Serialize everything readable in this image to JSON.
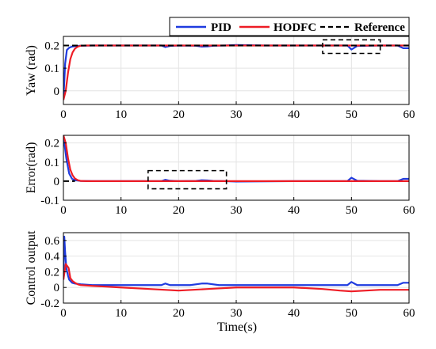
{
  "legend": {
    "items": [
      {
        "label": "PID",
        "color": "#1f3bdf",
        "style": "solid"
      },
      {
        "label": "HODFC",
        "color": "#ee1c25",
        "style": "solid"
      },
      {
        "label": "Reference",
        "color": "#000000",
        "style": "dashed"
      }
    ]
  },
  "xlabel": "Time(s)",
  "chart_data": [
    {
      "type": "line",
      "ylabel": "Yaw (rad)",
      "xlim": [
        0,
        60
      ],
      "ylim": [
        -0.06,
        0.24
      ],
      "xticks": [
        0,
        10,
        20,
        30,
        40,
        50,
        60
      ],
      "xtick_labels": [
        "0",
        "10",
        "20",
        "30",
        "40",
        "50",
        "60"
      ],
      "yticks": [
        0,
        0.1,
        0.2
      ],
      "ytick_labels": [
        "0",
        "0.1",
        "0.2"
      ],
      "grid": true,
      "zoom_box": {
        "x": [
          45,
          55
        ],
        "y": [
          0.165,
          0.225
        ]
      },
      "series": [
        {
          "name": "PID",
          "color": "#1f3bdf",
          "x": [
            0,
            0.3,
            0.6,
            1.0,
            1.5,
            2.0,
            3.0,
            5,
            10,
            15,
            17,
            17.7,
            18.5,
            20,
            23,
            24,
            25,
            26,
            28,
            30,
            35,
            40,
            45,
            48,
            49.3,
            50,
            51,
            55,
            58,
            59,
            60
          ],
          "y": [
            -0.04,
            0.12,
            0.18,
            0.19,
            0.195,
            0.197,
            0.199,
            0.2,
            0.2,
            0.2,
            0.2,
            0.193,
            0.198,
            0.2,
            0.199,
            0.195,
            0.196,
            0.199,
            0.2,
            0.202,
            0.2,
            0.2,
            0.2,
            0.2,
            0.2,
            0.182,
            0.198,
            0.2,
            0.2,
            0.188,
            0.188
          ]
        },
        {
          "name": "HODFC",
          "color": "#ee1c25",
          "x": [
            0,
            0.4,
            0.8,
            1.2,
            1.6,
            2.0,
            2.5,
            3.0,
            4,
            10,
            20,
            30,
            40,
            50,
            60
          ],
          "y": [
            -0.04,
            0.0,
            0.08,
            0.14,
            0.17,
            0.186,
            0.195,
            0.199,
            0.2,
            0.2,
            0.2,
            0.2,
            0.2,
            0.2,
            0.2
          ]
        },
        {
          "name": "Reference",
          "color": "#000000",
          "x": [
            0,
            60
          ],
          "y": [
            0.2,
            0.2
          ]
        }
      ]
    },
    {
      "type": "line",
      "ylabel": "Error(rad)",
      "xlim": [
        0,
        60
      ],
      "ylim": [
        -0.1,
        0.24
      ],
      "xticks": [
        0,
        10,
        20,
        30,
        40,
        50,
        60
      ],
      "xtick_labels": [
        "0",
        "10",
        "20",
        "30",
        "40",
        "50",
        "60"
      ],
      "yticks": [
        -0.1,
        0,
        0.1,
        0.2
      ],
      "ytick_labels": [
        "-0.1",
        "0",
        "0.1",
        "0.2"
      ],
      "grid": true,
      "zoom_box": {
        "x": [
          14.7,
          28.3
        ],
        "y": [
          -0.04,
          0.055
        ]
      },
      "series": [
        {
          "name": "PID",
          "color": "#1f3bdf",
          "x": [
            0,
            0.5,
            1.0,
            1.5,
            2.0,
            3.0,
            5,
            10,
            15,
            17,
            17.7,
            18.5,
            20,
            23,
            24,
            25,
            26,
            28,
            30,
            35,
            40,
            45,
            48,
            49.3,
            50,
            51,
            55,
            58,
            59,
            60
          ],
          "y": [
            0.24,
            0.12,
            0.04,
            0.012,
            0.005,
            0.001,
            0.0,
            0.0,
            0.0,
            0.0,
            0.007,
            0.002,
            0.0,
            0.001,
            0.005,
            0.004,
            0.001,
            0.0,
            -0.002,
            -0.001,
            0.0,
            0.0,
            0.0,
            0.0,
            0.018,
            0.002,
            0.0,
            0.0,
            0.012,
            0.012
          ]
        },
        {
          "name": "HODFC",
          "color": "#ee1c25",
          "x": [
            0,
            0.4,
            0.8,
            1.2,
            1.6,
            2.0,
            2.5,
            3.0,
            4,
            10,
            20,
            30,
            40,
            50,
            60
          ],
          "y": [
            0.24,
            0.2,
            0.12,
            0.06,
            0.03,
            0.014,
            0.005,
            0.001,
            0.0,
            0.0,
            0.0,
            0.0,
            0.0,
            0.0,
            0.0
          ]
        },
        {
          "name": "Reference",
          "color": "#000000",
          "x": [
            0,
            2
          ],
          "y": [
            0.0,
            0.0
          ]
        }
      ]
    },
    {
      "type": "line",
      "ylabel": "Control output",
      "xlim": [
        0,
        60
      ],
      "ylim": [
        -0.2,
        0.7
      ],
      "xticks": [
        0,
        10,
        20,
        30,
        40,
        50,
        60
      ],
      "xtick_labels": [
        "0",
        "10",
        "20",
        "30",
        "40",
        "50",
        "60"
      ],
      "yticks": [
        -0.2,
        0,
        0.2,
        0.4,
        0.6
      ],
      "ytick_labels": [
        "-0.2",
        "0",
        "0.2",
        "0.4",
        "0.6"
      ],
      "grid": true,
      "series": [
        {
          "name": "PID",
          "color": "#1f3bdf",
          "x": [
            0,
            0.15,
            0.3,
            0.5,
            0.8,
            1.0,
            1.5,
            2,
            3,
            5,
            10,
            15,
            17,
            17.7,
            18.5,
            22,
            24,
            25,
            27,
            30,
            35,
            40,
            45,
            48,
            49.3,
            50,
            51,
            55,
            58,
            59,
            60
          ],
          "y": [
            0.1,
            0.65,
            0.45,
            0.25,
            0.15,
            0.1,
            0.06,
            0.05,
            0.04,
            0.03,
            0.03,
            0.03,
            0.03,
            0.05,
            0.03,
            0.03,
            0.05,
            0.05,
            0.03,
            0.03,
            0.03,
            0.03,
            0.03,
            0.03,
            0.03,
            0.07,
            0.03,
            0.03,
            0.03,
            0.06,
            0.06
          ]
        },
        {
          "name": "HODFC",
          "color": "#ee1c25",
          "x": [
            0,
            0.2,
            0.4,
            0.6,
            0.9,
            1.2,
            1.6,
            2.0,
            2.5,
            3,
            5,
            10,
            15,
            20,
            25,
            30,
            35,
            40,
            45,
            48,
            50,
            55,
            60
          ],
          "y": [
            0.1,
            0.2,
            0.3,
            0.28,
            0.25,
            0.12,
            0.08,
            0.06,
            0.04,
            0.03,
            0.02,
            0.0,
            -0.02,
            -0.04,
            -0.02,
            0.0,
            0.0,
            0.0,
            -0.02,
            -0.04,
            -0.05,
            -0.03,
            -0.03
          ]
        }
      ]
    }
  ]
}
